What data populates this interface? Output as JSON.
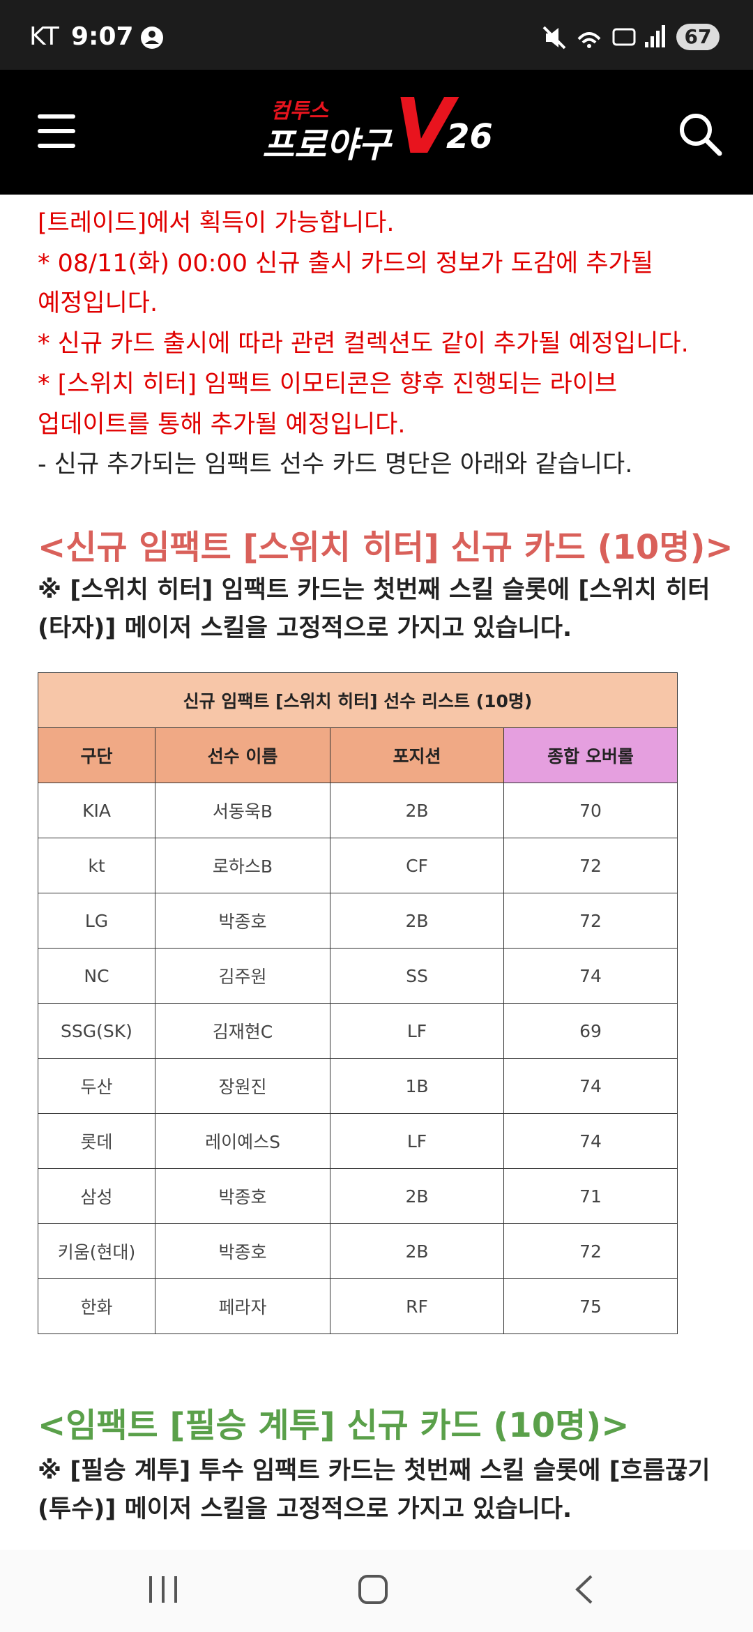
{
  "status_bar": {
    "carrier": "KT",
    "time": "9:07",
    "battery": "67"
  },
  "header": {
    "logo_top": "컴투스",
    "logo_main": "프로야구",
    "logo_v": "V",
    "logo_num": "26"
  },
  "notice_lines": [
    {
      "text": "[트레이드]에서 획득이 가능합니다.",
      "color": "#e00000"
    },
    {
      "text": "* 08/11(화) 00:00 신규 출시 카드의 정보가 도감에 추가될",
      "color": "#e00000"
    },
    {
      "text": "예정입니다.",
      "color": "#e00000"
    },
    {
      "text": "* 신규 카드 출시에 따라 관련 컬렉션도 같이 추가될 예정입니다.",
      "color": "#e00000"
    },
    {
      "text": "* [스위치 히터] 임팩트 이모티콘은 향후 진행되는 라이브",
      "color": "#e00000"
    },
    {
      "text": "업데이트를 통해 추가될 예정입니다.",
      "color": "#e00000"
    },
    {
      "text": "- 신규 추가되는 임팩트 선수 카드 명단은 아래와 같습니다.",
      "color": "#222222"
    }
  ],
  "section1": {
    "heading": "<신규 임팩트 [스위치 히터] 신규 카드 (10명)>",
    "note_lines": [
      "※ [스위치 히터] 임팩트 카드는 첫번째 스킬 슬롯에 [스위치 히터",
      "(타자)] 메이저 스킬을 고정적으로 가지고 있습니다."
    ]
  },
  "table": {
    "title": "신규 임팩트 [스위치 히터] 선수 리스트 (10명)",
    "headers": [
      "구단",
      "선수 이름",
      "포지션",
      "종합 오버롤"
    ],
    "rows": [
      [
        "KIA",
        "서동욱B",
        "2B",
        "70"
      ],
      [
        "kt",
        "로하스B",
        "CF",
        "72"
      ],
      [
        "LG",
        "박종호",
        "2B",
        "72"
      ],
      [
        "NC",
        "김주원",
        "SS",
        "74"
      ],
      [
        "SSG(SK)",
        "김재현C",
        "LF",
        "69"
      ],
      [
        "두산",
        "장원진",
        "1B",
        "74"
      ],
      [
        "롯데",
        "레이예스S",
        "LF",
        "74"
      ],
      [
        "삼성",
        "박종호",
        "2B",
        "71"
      ],
      [
        "키움(현대)",
        "박종호",
        "2B",
        "72"
      ],
      [
        "한화",
        "페라자",
        "RF",
        "75"
      ]
    ]
  },
  "section2": {
    "heading": "<임팩트 [필승 계투] 신규 카드 (10명)>",
    "note_lines": [
      "※ [필승 계투] 투수 임팩트 카드는 첫번째 스킬 슬롯에 [흐름끊기",
      "(투수)] 메이저 스킬을 고정적으로 가지고 있습니다."
    ]
  }
}
